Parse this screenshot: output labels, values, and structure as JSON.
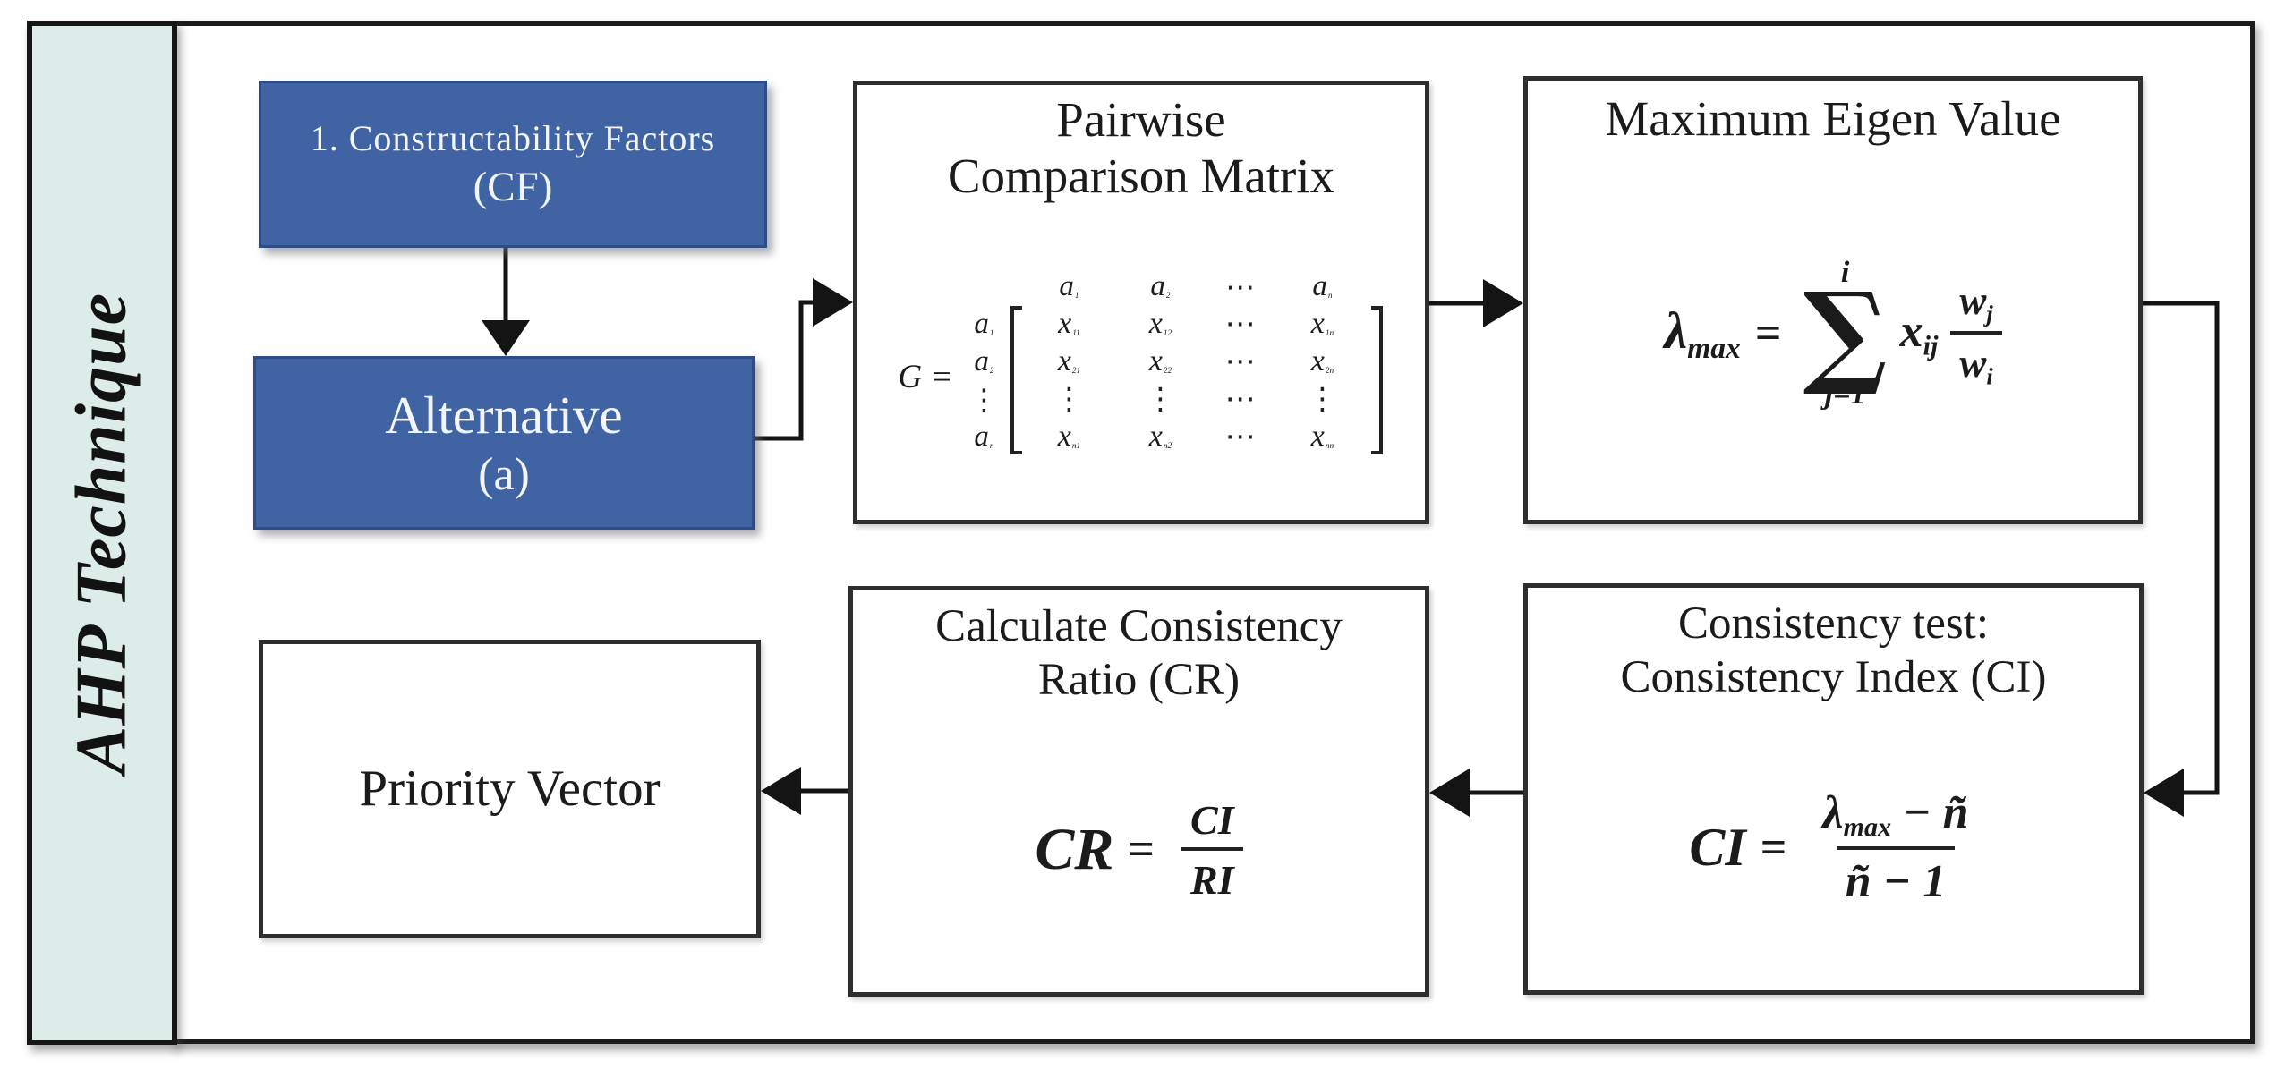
{
  "page": {
    "colors": {
      "box_blue": "#3f63a3",
      "sidebar_bg": "#dcede9",
      "line": "#141414"
    }
  },
  "sidebar": {
    "label": "AHP Technique"
  },
  "boxes": {
    "cf": {
      "line1": "1. Constructability Factors",
      "line2": "(CF)"
    },
    "alternative": {
      "line1": "Alternative",
      "line2": "(a)"
    },
    "pairwise": {
      "title_line1": "Pairwise",
      "title_line2": "Comparison Matrix",
      "matrix": {
        "lhs": "G =",
        "col_headers": [
          [
            "a",
            "1"
          ],
          [
            "a",
            "2"
          ],
          [
            "⋯",
            ""
          ],
          [
            "a",
            "n"
          ]
        ],
        "rows": [
          {
            "label": [
              "a",
              "1"
            ],
            "cells": [
              [
                "x",
                "11"
              ],
              [
                "x",
                "12"
              ],
              [
                "⋯",
                ""
              ],
              [
                "x",
                "1n"
              ]
            ]
          },
          {
            "label": [
              "a",
              "2"
            ],
            "cells": [
              [
                "x",
                "21"
              ],
              [
                "x",
                "22"
              ],
              [
                "⋯",
                ""
              ],
              [
                "x",
                "2n"
              ]
            ]
          },
          {
            "label": [
              "⋮",
              ""
            ],
            "cells": [
              [
                "⋮",
                ""
              ],
              [
                "⋮",
                ""
              ],
              [
                "⋯",
                ""
              ],
              [
                "⋮",
                ""
              ]
            ]
          },
          {
            "label": [
              "a",
              "n"
            ],
            "cells": [
              [
                "x",
                "n1"
              ],
              [
                "x",
                "n2"
              ],
              [
                "⋯",
                ""
              ],
              [
                "x",
                "nn"
              ]
            ]
          }
        ]
      }
    },
    "max_eigen": {
      "title": "Maximum Eigen Value",
      "formula": {
        "lhs": "λ",
        "lhs_sub": "max",
        "eq": "=",
        "sum": "∑",
        "sum_top": "i",
        "sum_bot": "j=1",
        "term": "x",
        "term_sub": "ij",
        "num": "w",
        "num_sub": "j",
        "den": "w",
        "den_sub": "i"
      }
    },
    "priority": {
      "label": "Priority Vector"
    },
    "cr_box": {
      "title_line1": "Calculate Consistency",
      "title_line2": "Ratio (CR)",
      "formula": {
        "lhs": "CR",
        "eq": "=",
        "num": "CI",
        "den": "RI"
      }
    },
    "ci_box": {
      "title_line1": "Consistency test:",
      "title_line2": "Consistency Index (CI)",
      "formula": {
        "lhs": "CI",
        "eq": "=",
        "num_a": "λ",
        "num_a_sub": "max",
        "num_b": "− ñ",
        "den": "ñ − 1"
      }
    }
  }
}
